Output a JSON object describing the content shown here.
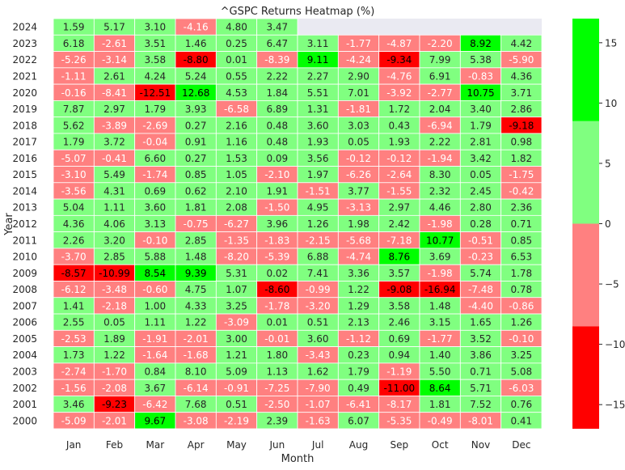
{
  "chart_data": {
    "type": "heatmap",
    "title": "^GSPC Returns Heatmap (%)",
    "xlabel": "Month",
    "ylabel": "Year",
    "months": [
      "Jan",
      "Feb",
      "Mar",
      "Apr",
      "May",
      "Jun",
      "Jul",
      "Aug",
      "Sep",
      "Oct",
      "Nov",
      "Dec"
    ],
    "years": [
      "2024",
      "2023",
      "2022",
      "2021",
      "2020",
      "2019",
      "2018",
      "2017",
      "2016",
      "2015",
      "2014",
      "2013",
      "2012",
      "2011",
      "2010",
      "2009",
      "2008",
      "2007",
      "2006",
      "2005",
      "2004",
      "2003",
      "2002",
      "2001",
      "2000"
    ],
    "values": [
      [
        1.59,
        5.17,
        3.1,
        -4.16,
        4.8,
        3.47,
        null,
        null,
        null,
        null,
        null,
        null
      ],
      [
        6.18,
        -2.61,
        3.51,
        1.46,
        0.25,
        6.47,
        3.11,
        -1.77,
        -4.87,
        -2.2,
        8.92,
        4.42
      ],
      [
        -5.26,
        -3.14,
        3.58,
        -8.8,
        0.01,
        -8.39,
        9.11,
        -4.24,
        -9.34,
        7.99,
        5.38,
        -5.9
      ],
      [
        -1.11,
        2.61,
        4.24,
        5.24,
        0.55,
        2.22,
        2.27,
        2.9,
        -4.76,
        6.91,
        -0.83,
        4.36
      ],
      [
        -0.16,
        -8.41,
        -12.51,
        12.68,
        4.53,
        1.84,
        5.51,
        7.01,
        -3.92,
        -2.77,
        10.75,
        3.71
      ],
      [
        7.87,
        2.97,
        1.79,
        3.93,
        -6.58,
        6.89,
        1.31,
        -1.81,
        1.72,
        2.04,
        3.4,
        2.86
      ],
      [
        5.62,
        -3.89,
        -2.69,
        0.27,
        2.16,
        0.48,
        3.6,
        3.03,
        0.43,
        -6.94,
        1.79,
        -9.18
      ],
      [
        1.79,
        3.72,
        -0.04,
        0.91,
        1.16,
        0.48,
        1.93,
        0.05,
        1.93,
        2.22,
        2.81,
        0.98
      ],
      [
        -5.07,
        -0.41,
        6.6,
        0.27,
        1.53,
        0.09,
        3.56,
        -0.12,
        -0.12,
        -1.94,
        3.42,
        1.82
      ],
      [
        -3.1,
        5.49,
        -1.74,
        0.85,
        1.05,
        -2.1,
        1.97,
        -6.26,
        -2.64,
        8.3,
        0.05,
        -1.75
      ],
      [
        -3.56,
        4.31,
        0.69,
        0.62,
        2.1,
        1.91,
        -1.51,
        3.77,
        -1.55,
        2.32,
        2.45,
        -0.42
      ],
      [
        5.04,
        1.11,
        3.6,
        1.81,
        2.08,
        -1.5,
        4.95,
        -3.13,
        2.97,
        4.46,
        2.8,
        2.36
      ],
      [
        4.36,
        4.06,
        3.13,
        -0.75,
        -6.27,
        3.96,
        1.26,
        1.98,
        2.42,
        -1.98,
        0.28,
        0.71
      ],
      [
        2.26,
        3.2,
        -0.1,
        2.85,
        -1.35,
        -1.83,
        -2.15,
        -5.68,
        -7.18,
        10.77,
        -0.51,
        0.85
      ],
      [
        -3.7,
        2.85,
        5.88,
        1.48,
        -8.2,
        -5.39,
        6.88,
        -4.74,
        8.76,
        3.69,
        -0.23,
        6.53
      ],
      [
        -8.57,
        -10.99,
        8.54,
        9.39,
        5.31,
        0.02,
        7.41,
        3.36,
        3.57,
        -1.98,
        5.74,
        1.78
      ],
      [
        -6.12,
        -3.48,
        -0.6,
        4.75,
        1.07,
        -8.6,
        -0.99,
        1.22,
        -9.08,
        -16.94,
        -7.48,
        0.78
      ],
      [
        1.41,
        -2.18,
        1.0,
        4.33,
        3.25,
        -1.78,
        -3.2,
        1.29,
        3.58,
        1.48,
        -4.4,
        -0.86
      ],
      [
        2.55,
        0.05,
        1.11,
        1.22,
        -3.09,
        0.01,
        0.51,
        2.13,
        2.46,
        3.15,
        1.65,
        1.26
      ],
      [
        -2.53,
        1.89,
        -1.91,
        -2.01,
        3.0,
        -0.01,
        3.6,
        -1.12,
        0.69,
        -1.77,
        3.52,
        -0.1
      ],
      [
        1.73,
        1.22,
        -1.64,
        -1.68,
        1.21,
        1.8,
        -3.43,
        0.23,
        0.94,
        1.4,
        3.86,
        3.25
      ],
      [
        -2.74,
        -1.7,
        0.84,
        8.1,
        5.09,
        1.13,
        1.62,
        1.79,
        -1.19,
        5.5,
        0.71,
        5.08
      ],
      [
        -1.56,
        -2.08,
        3.67,
        -6.14,
        -0.91,
        -7.25,
        -7.9,
        0.49,
        -11.0,
        8.64,
        5.71,
        -6.03
      ],
      [
        3.46,
        -9.23,
        -6.42,
        7.68,
        0.51,
        -2.5,
        -1.07,
        -6.41,
        -8.17,
        1.81,
        7.52,
        0.76
      ],
      [
        -5.09,
        -2.01,
        9.67,
        -3.08,
        -2.19,
        2.39,
        -1.63,
        6.07,
        -5.35,
        -0.49,
        -8.01,
        0.41
      ]
    ],
    "color_bins": [
      {
        "min": -17,
        "max": -8.5,
        "color": "#ff0000"
      },
      {
        "min": -8.5,
        "max": 0,
        "color": "#ff8080"
      },
      {
        "min": 0,
        "max": 8.5,
        "color": "#80ff80"
      },
      {
        "min": 8.5,
        "max": 17,
        "color": "#00ff00"
      }
    ],
    "colorbar": {
      "range": [
        -17,
        17
      ],
      "ticks": [
        -15,
        -10,
        -5,
        0,
        5,
        10,
        15
      ],
      "tick_labels": [
        "−15",
        "−10",
        "−5",
        "0",
        "5",
        "10",
        "15"
      ]
    },
    "empty_cell_color": "#eaeaf2",
    "text_color": "#000000",
    "axis_text_color": "#262626"
  }
}
